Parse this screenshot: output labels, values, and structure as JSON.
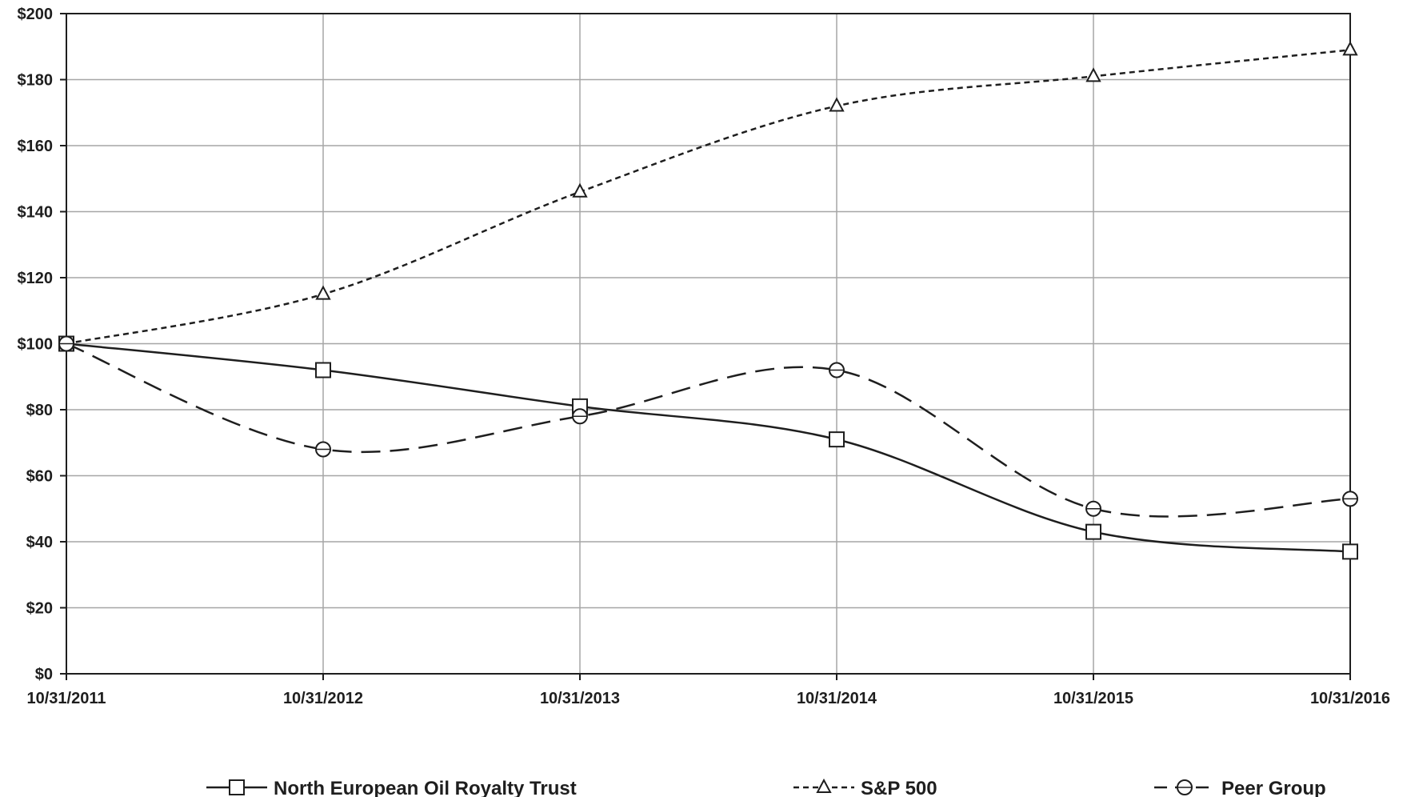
{
  "chart_data": {
    "type": "line",
    "categories": [
      "10/31/2011",
      "10/31/2012",
      "10/31/2013",
      "10/31/2014",
      "10/31/2015",
      "10/31/2016"
    ],
    "y_ticks": [
      "$0",
      "$20",
      "$40",
      "$60",
      "$80",
      "$100",
      "$120",
      "$140",
      "$160",
      "$180",
      "$200"
    ],
    "ylim": [
      0,
      200
    ],
    "grid": true,
    "legend_position": "bottom",
    "series": [
      {
        "name": "North European Oil Royalty Trust",
        "marker": "square",
        "line_style": "solid",
        "values": [
          100,
          92,
          81,
          71,
          43,
          37
        ]
      },
      {
        "name": "S&P 500",
        "marker": "triangle",
        "line_style": "short-dash",
        "values": [
          100,
          115,
          146,
          172,
          181,
          189
        ]
      },
      {
        "name": "Peer Group",
        "marker": "circle",
        "line_style": "long-dash",
        "values": [
          100,
          68,
          78,
          92,
          50,
          53
        ]
      }
    ],
    "colors": {
      "line": "#1e1e1e",
      "grid": "#a6a6a6"
    }
  }
}
